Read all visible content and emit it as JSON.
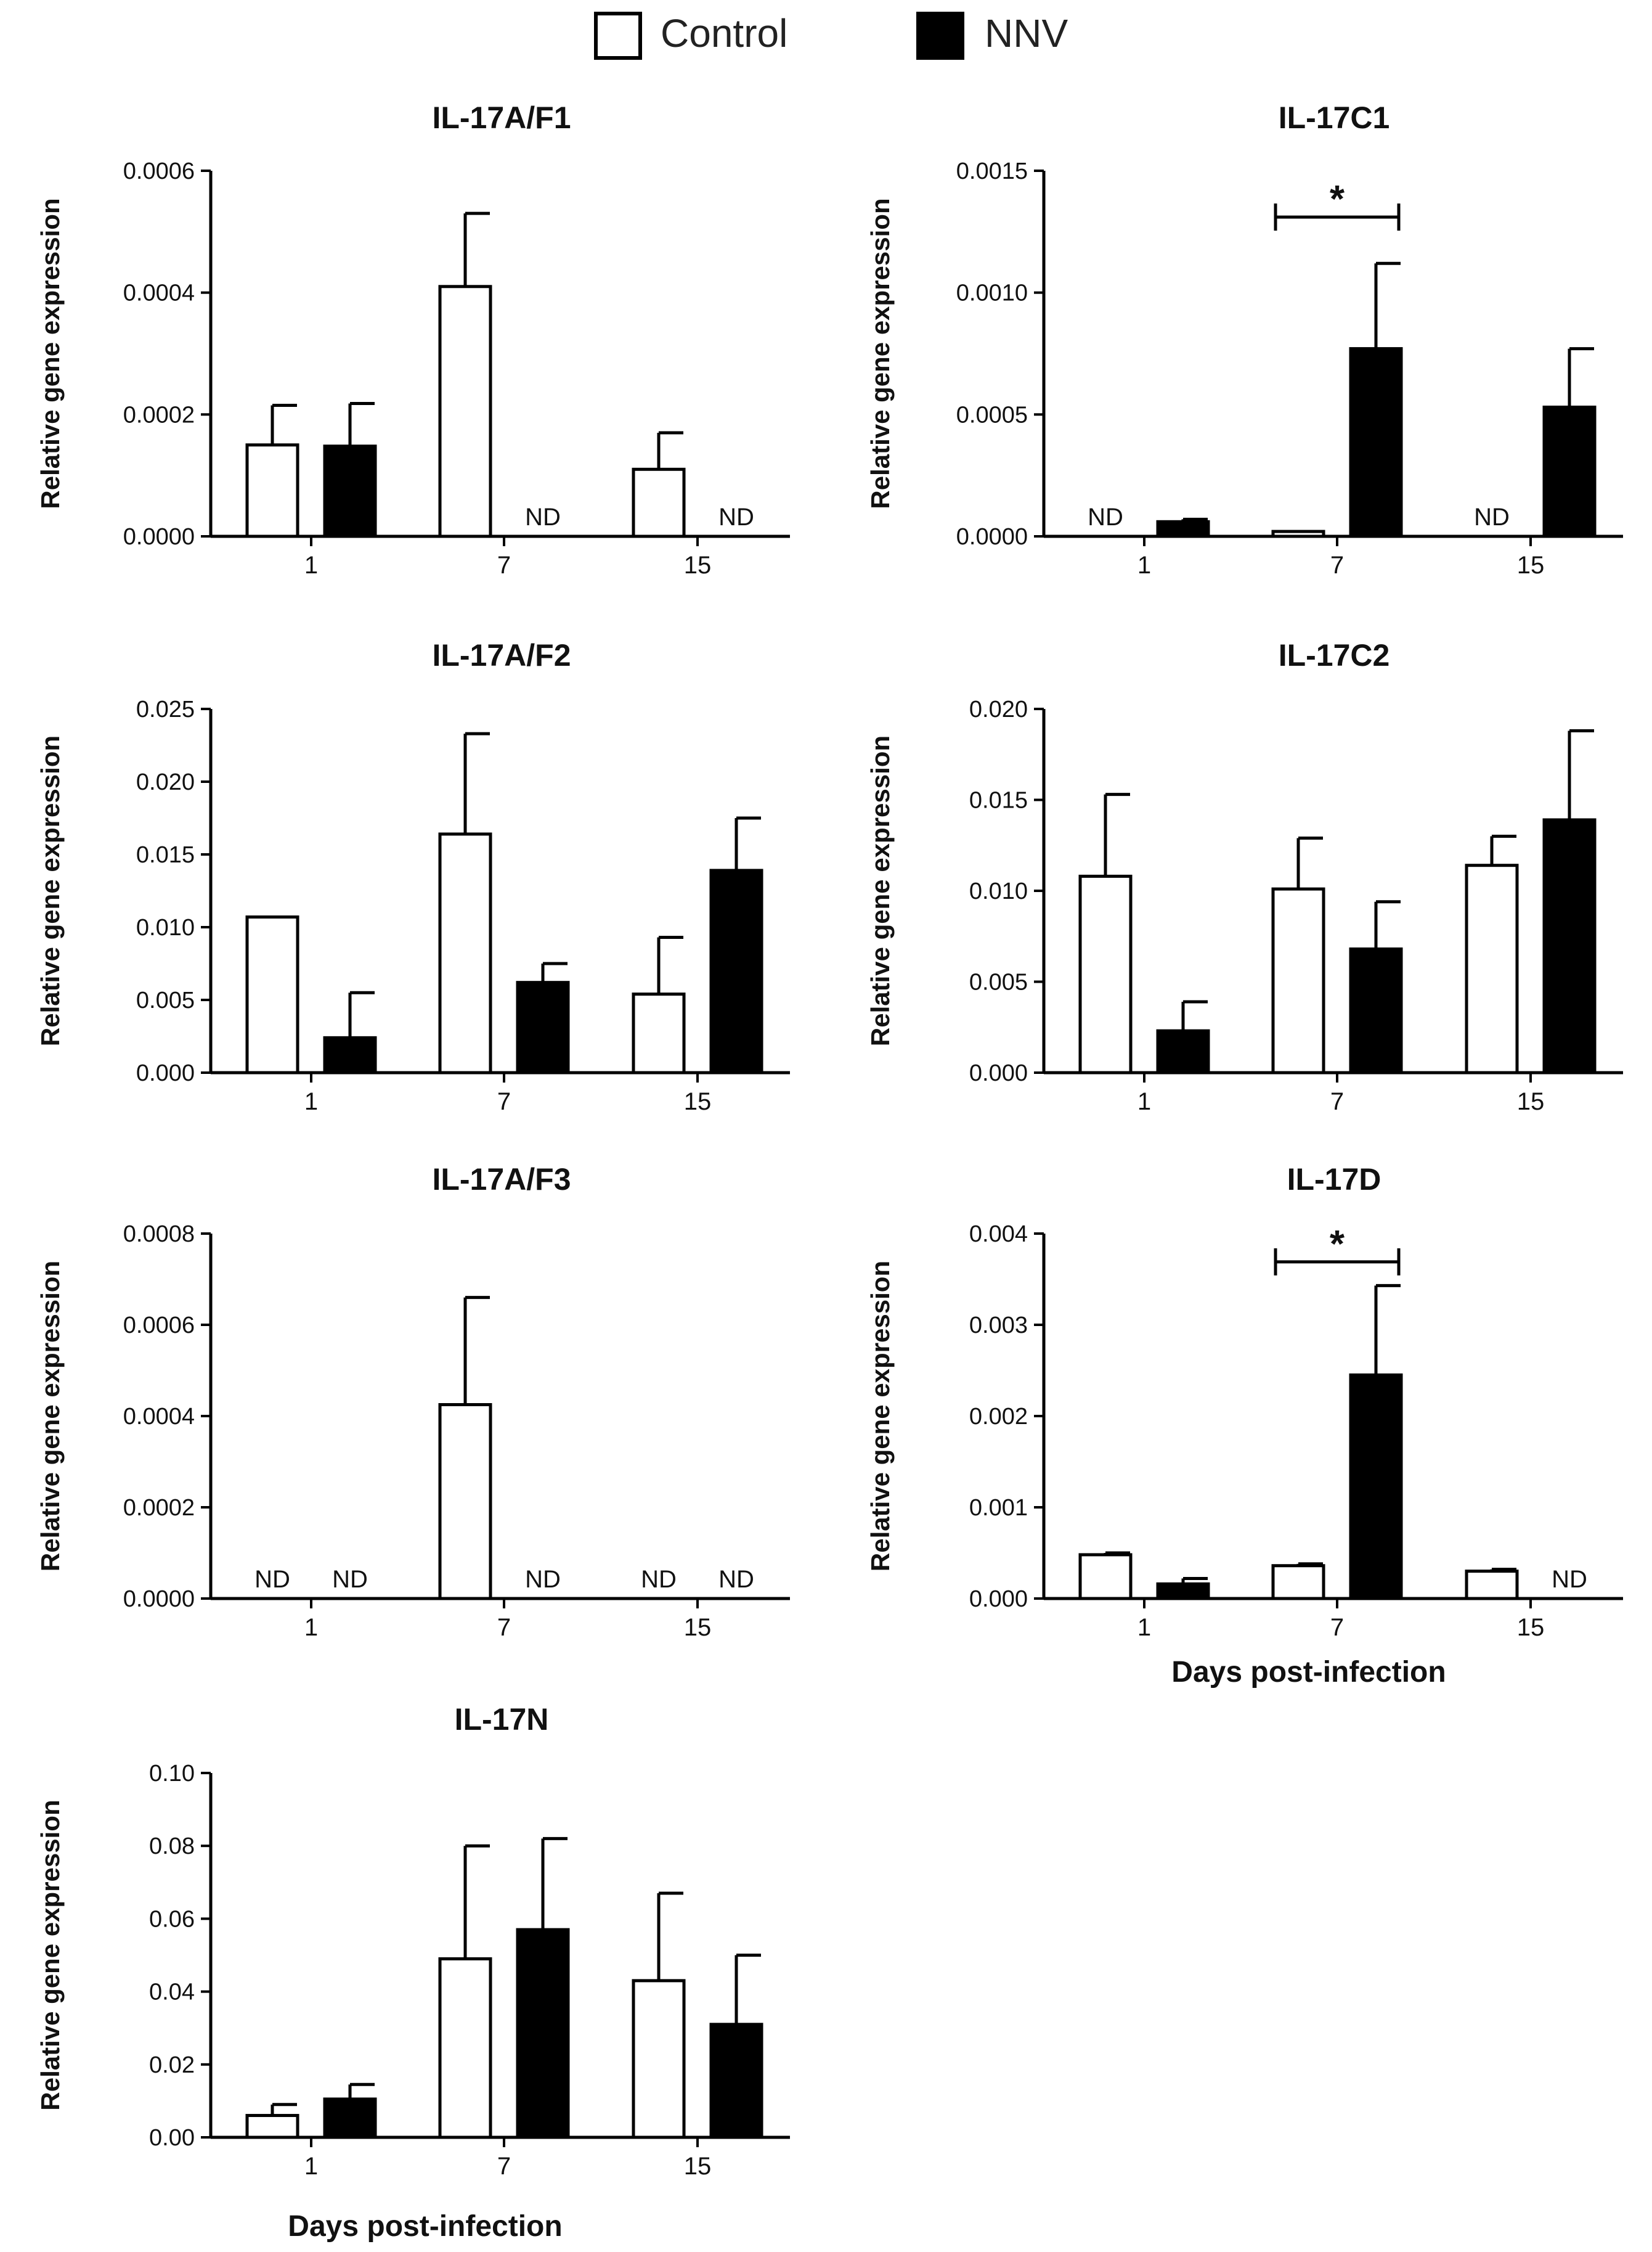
{
  "legend": {
    "control_label": "Control",
    "nnv_label": "NNV",
    "control_color": "#ffffff",
    "nnv_color": "#000000"
  },
  "chart_data": [
    {
      "id": "il17af1",
      "type": "bar",
      "title": "IL-17A/F1",
      "ylabel": "Relative gene expression",
      "xlabel": "",
      "categories": [
        "1",
        "7",
        "15"
      ],
      "ylim": [
        0,
        0.0006
      ],
      "yticks": [
        "0.0000",
        "0.0002",
        "0.0004",
        "0.0006"
      ],
      "series": [
        {
          "name": "Control",
          "values": [
            0.00015,
            0.00041,
            0.00011
          ],
          "errors": [
            6.5e-05,
            0.00012,
            6e-05
          ],
          "nd": [
            false,
            false,
            false
          ]
        },
        {
          "name": "NNV",
          "values": [
            0.000148,
            0,
            0
          ],
          "errors": [
            7e-05,
            0,
            0
          ],
          "nd": [
            false,
            true,
            true
          ]
        }
      ],
      "nd_text": "ND",
      "significance": []
    },
    {
      "id": "il17c1",
      "type": "bar",
      "title": "IL-17C1",
      "ylabel": "Relative gene expression",
      "xlabel": "",
      "categories": [
        "1",
        "7",
        "15"
      ],
      "ylim": [
        0,
        0.0015
      ],
      "yticks": [
        "0.0000",
        "0.0005",
        "0.0010",
        "0.0015"
      ],
      "series": [
        {
          "name": "Control",
          "values": [
            0,
            2e-05,
            0
          ],
          "errors": [
            0,
            0,
            0
          ],
          "nd": [
            true,
            false,
            true
          ]
        },
        {
          "name": "NNV",
          "values": [
            6e-05,
            0.00077,
            0.00053
          ],
          "errors": [
            1e-05,
            0.00035,
            0.00024
          ],
          "nd": [
            false,
            false,
            false
          ]
        }
      ],
      "nd_text": "ND",
      "significance": [
        {
          "category": "7",
          "label": "*",
          "level": 0.00131
        }
      ]
    },
    {
      "id": "il17af2",
      "type": "bar",
      "title": "IL-17A/F2",
      "ylabel": "Relative gene expression",
      "xlabel": "",
      "categories": [
        "1",
        "7",
        "15"
      ],
      "ylim": [
        0,
        0.025
      ],
      "yticks": [
        "0.000",
        "0.005",
        "0.010",
        "0.015",
        "0.020",
        "0.025"
      ],
      "series": [
        {
          "name": "Control",
          "values": [
            0.0107,
            0.0164,
            0.0054
          ],
          "errors": [
            0,
            0.0069,
            0.0039
          ],
          "nd": [
            false,
            false,
            false
          ]
        },
        {
          "name": "NNV",
          "values": [
            0.0024,
            0.0062,
            0.0139
          ],
          "errors": [
            0.0031,
            0.0013,
            0.0036
          ],
          "nd": [
            false,
            false,
            false
          ]
        }
      ],
      "nd_text": "ND",
      "significance": []
    },
    {
      "id": "il17c2",
      "type": "bar",
      "title": "IL-17C2",
      "ylabel": "Relative gene expression",
      "xlabel": "",
      "categories": [
        "1",
        "7",
        "15"
      ],
      "ylim": [
        0,
        0.02
      ],
      "yticks": [
        "0.000",
        "0.005",
        "0.010",
        "0.015",
        "0.020"
      ],
      "series": [
        {
          "name": "Control",
          "values": [
            0.0108,
            0.0101,
            0.0114
          ],
          "errors": [
            0.0045,
            0.0028,
            0.0016
          ],
          "nd": [
            false,
            false,
            false
          ]
        },
        {
          "name": "NNV",
          "values": [
            0.0023,
            0.0068,
            0.0139
          ],
          "errors": [
            0.0016,
            0.0026,
            0.0049
          ],
          "nd": [
            false,
            false,
            false
          ]
        }
      ],
      "nd_text": "ND",
      "significance": []
    },
    {
      "id": "il17af3",
      "type": "bar",
      "title": "IL-17A/F3",
      "ylabel": "Relative gene expression",
      "xlabel": "",
      "categories": [
        "1",
        "7",
        "15"
      ],
      "ylim": [
        0,
        0.0008
      ],
      "yticks": [
        "0.0000",
        "0.0002",
        "0.0004",
        "0.0006",
        "0.0008"
      ],
      "series": [
        {
          "name": "Control",
          "values": [
            0,
            0.000425,
            0
          ],
          "errors": [
            0,
            0.000235,
            0
          ],
          "nd": [
            true,
            false,
            true
          ]
        },
        {
          "name": "NNV",
          "values": [
            0,
            0,
            0
          ],
          "errors": [
            0,
            0,
            0
          ],
          "nd": [
            true,
            true,
            true
          ]
        }
      ],
      "nd_text": "ND",
      "significance": []
    },
    {
      "id": "il17d",
      "type": "bar",
      "title": "IL-17D",
      "ylabel": "Relative gene expression",
      "xlabel": "Days post-infection",
      "categories": [
        "1",
        "7",
        "15"
      ],
      "ylim": [
        0,
        0.004
      ],
      "yticks": [
        "0.000",
        "0.001",
        "0.002",
        "0.003",
        "0.004"
      ],
      "series": [
        {
          "name": "Control",
          "values": [
            0.00048,
            0.00036,
            0.0003
          ],
          "errors": [
            2e-05,
            2e-05,
            2e-05
          ],
          "nd": [
            false,
            false,
            false
          ]
        },
        {
          "name": "NNV",
          "values": [
            0.00016,
            0.00245,
            0
          ],
          "errors": [
            6e-05,
            0.00098,
            0
          ],
          "nd": [
            false,
            false,
            true
          ]
        }
      ],
      "nd_text": "ND",
      "significance": [
        {
          "category": "7",
          "label": "*",
          "level": 0.00369
        }
      ]
    },
    {
      "id": "il17n",
      "type": "bar",
      "title": "IL-17N",
      "ylabel": "Relative gene expression",
      "xlabel": "Days post-infection",
      "categories": [
        "1",
        "7",
        "15"
      ],
      "ylim": [
        0,
        0.1
      ],
      "yticks": [
        "0.00",
        "0.02",
        "0.04",
        "0.06",
        "0.08",
        "0.10"
      ],
      "series": [
        {
          "name": "Control",
          "values": [
            0.006,
            0.049,
            0.043
          ],
          "errors": [
            0.003,
            0.031,
            0.024
          ],
          "nd": [
            false,
            false,
            false
          ]
        },
        {
          "name": "NNV",
          "values": [
            0.0105,
            0.057,
            0.031
          ],
          "errors": [
            0.004,
            0.025,
            0.019
          ],
          "nd": [
            false,
            false,
            false
          ]
        }
      ],
      "nd_text": "ND",
      "significance": []
    }
  ]
}
